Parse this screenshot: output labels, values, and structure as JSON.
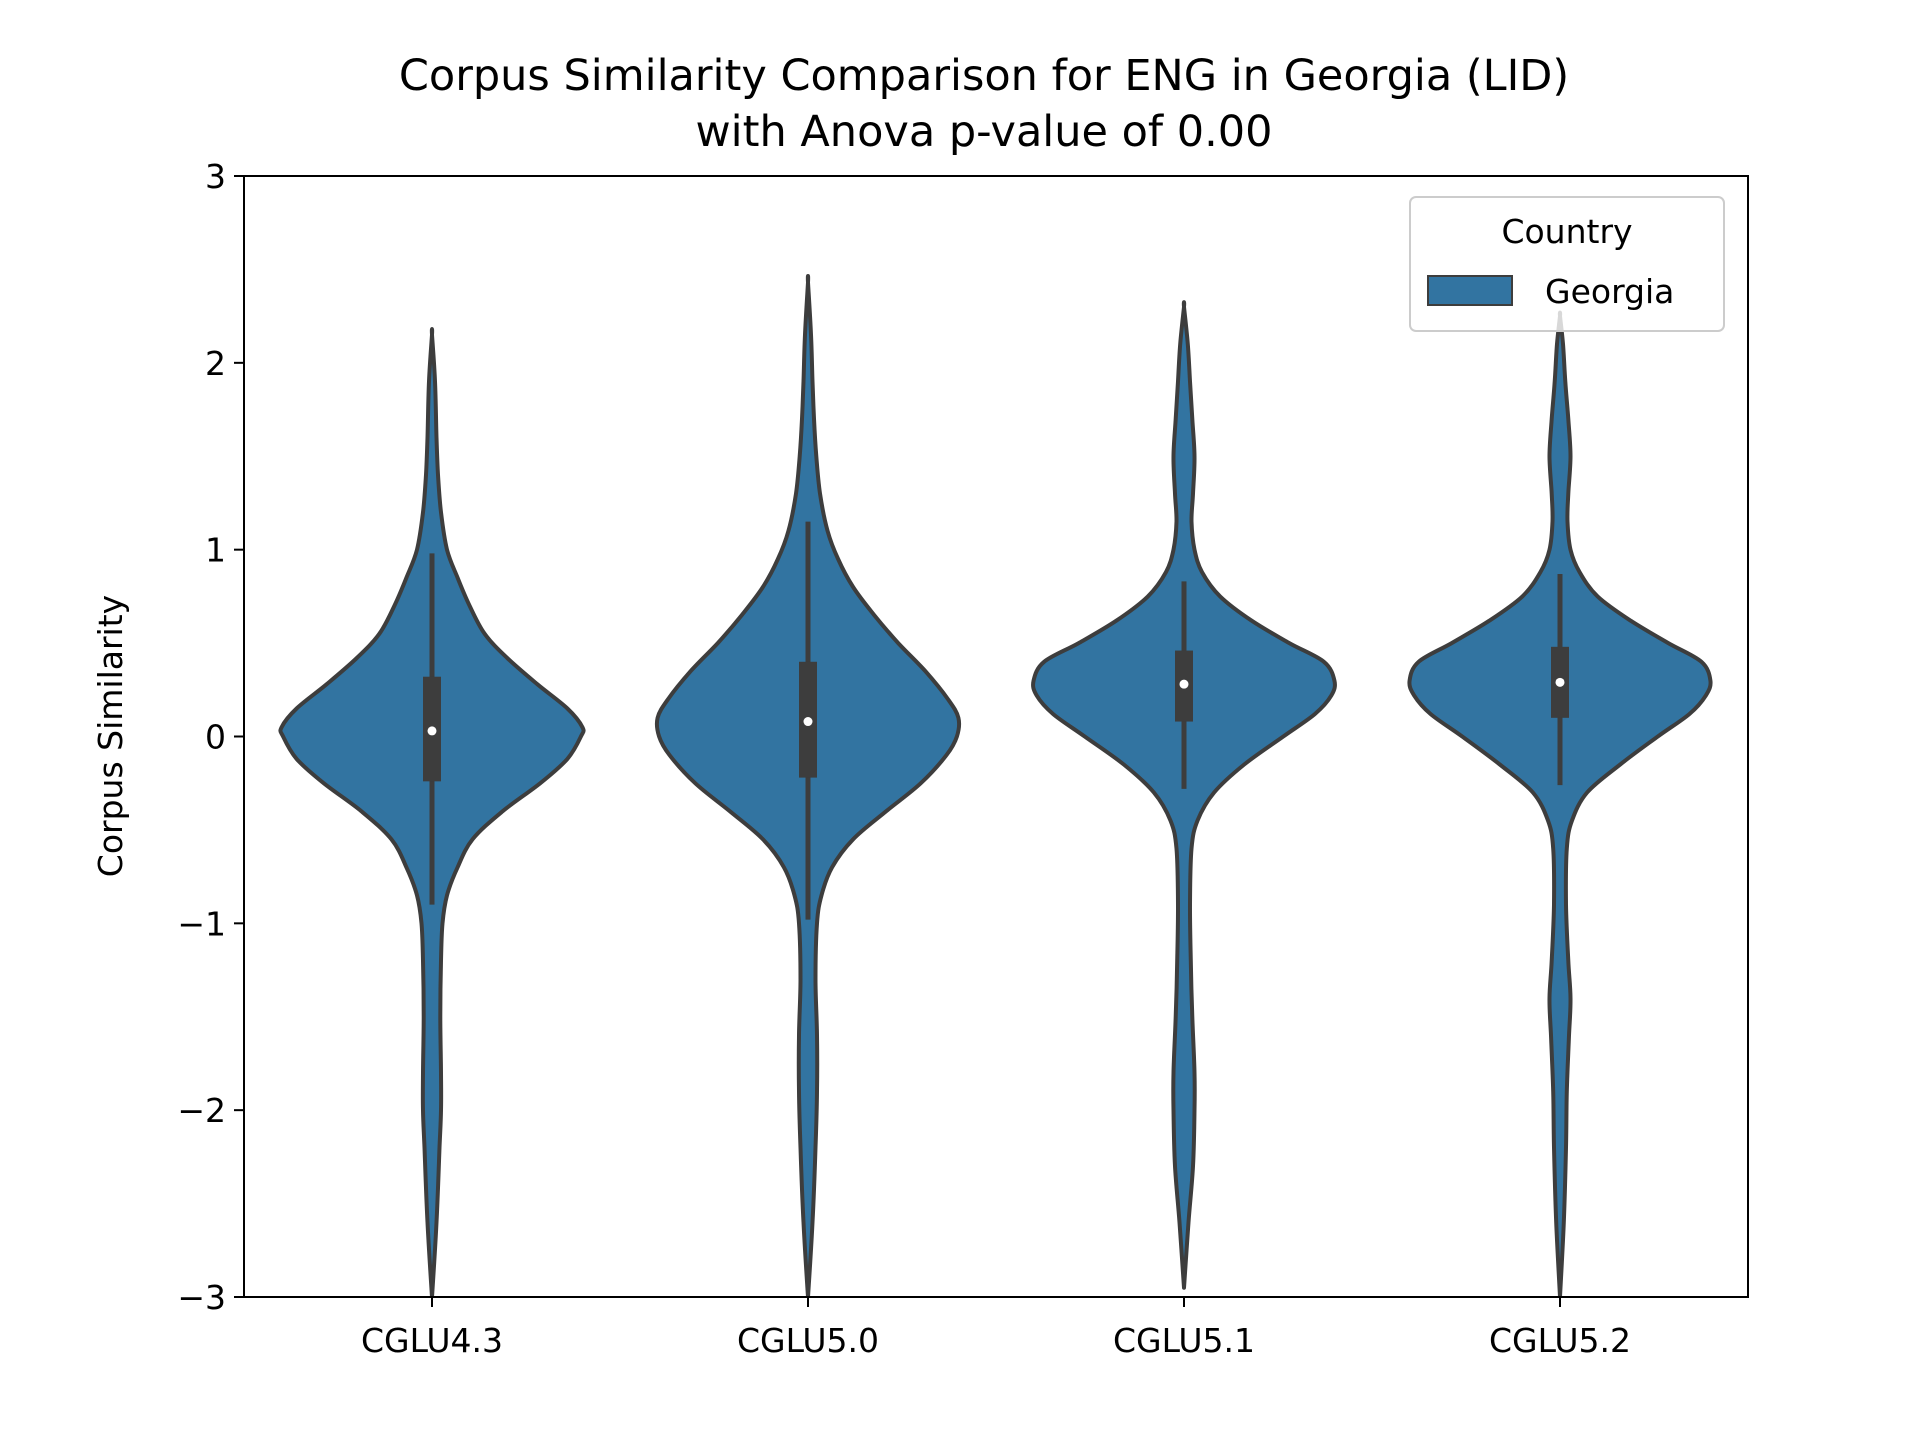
{
  "chart_data": {
    "type": "violin",
    "title": "Corpus Similarity Comparison for ENG in Georgia (LID)",
    "subtitle": "with Anova p-value of 0.00",
    "xlabel": "",
    "ylabel": "Corpus Similarity",
    "ylim": [
      -3,
      3
    ],
    "yticks": [
      -3,
      -2,
      -1,
      0,
      1,
      2,
      3
    ],
    "ytick_labels": [
      "−3",
      "−2",
      "−1",
      "0",
      "1",
      "2",
      "3"
    ],
    "categories": [
      "CGLU4.3",
      "CGLU5.0",
      "CGLU5.1",
      "CGLU5.2"
    ],
    "legend": {
      "title": "Country",
      "entries": [
        "Georgia"
      ],
      "placement": "top-right"
    },
    "colors": {
      "fill": "#3274a1",
      "edge": "#3d3d3d",
      "median": "#ffffff"
    },
    "series": [
      {
        "name": "Georgia",
        "violins": [
          {
            "category": "CGLU4.3",
            "median": 0.03,
            "q1": -0.24,
            "q3": 0.32,
            "whisker_low": -0.9,
            "whisker_high": 0.98,
            "min": -3.0,
            "max": 2.15,
            "density": [
              [
                -3.0,
                0.0
              ],
              [
                -2.6,
                0.03
              ],
              [
                -2.2,
                0.05
              ],
              [
                -2.0,
                0.06
              ],
              [
                -1.8,
                0.06
              ],
              [
                -1.5,
                0.055
              ],
              [
                -1.2,
                0.06
              ],
              [
                -1.0,
                0.07
              ],
              [
                -0.85,
                0.1
              ],
              [
                -0.7,
                0.17
              ],
              [
                -0.55,
                0.27
              ],
              [
                -0.4,
                0.47
              ],
              [
                -0.25,
                0.72
              ],
              [
                -0.12,
                0.9
              ],
              [
                0.0,
                0.99
              ],
              [
                0.05,
                1.0
              ],
              [
                0.15,
                0.9
              ],
              [
                0.28,
                0.7
              ],
              [
                0.42,
                0.5
              ],
              [
                0.55,
                0.35
              ],
              [
                0.7,
                0.25
              ],
              [
                0.85,
                0.17
              ],
              [
                1.0,
                0.1
              ],
              [
                1.2,
                0.06
              ],
              [
                1.4,
                0.04
              ],
              [
                1.6,
                0.03
              ],
              [
                1.9,
                0.02
              ],
              [
                2.15,
                0.0
              ]
            ]
          },
          {
            "category": "CGLU5.0",
            "median": 0.08,
            "q1": -0.22,
            "q3": 0.4,
            "whisker_low": -0.98,
            "whisker_high": 1.15,
            "min": -3.0,
            "max": 2.43,
            "density": [
              [
                -3.0,
                0.0
              ],
              [
                -2.6,
                0.03
              ],
              [
                -2.2,
                0.05
              ],
              [
                -1.9,
                0.06
              ],
              [
                -1.6,
                0.06
              ],
              [
                -1.3,
                0.05
              ],
              [
                -1.0,
                0.06
              ],
              [
                -0.85,
                0.09
              ],
              [
                -0.7,
                0.16
              ],
              [
                -0.55,
                0.3
              ],
              [
                -0.4,
                0.52
              ],
              [
                -0.25,
                0.75
              ],
              [
                -0.1,
                0.92
              ],
              [
                0.0,
                0.99
              ],
              [
                0.1,
                1.0
              ],
              [
                0.2,
                0.93
              ],
              [
                0.35,
                0.78
              ],
              [
                0.5,
                0.6
              ],
              [
                0.65,
                0.44
              ],
              [
                0.8,
                0.3
              ],
              [
                0.95,
                0.2
              ],
              [
                1.1,
                0.13
              ],
              [
                1.3,
                0.08
              ],
              [
                1.5,
                0.055
              ],
              [
                1.7,
                0.04
              ],
              [
                1.9,
                0.03
              ],
              [
                2.15,
                0.02
              ],
              [
                2.43,
                0.0
              ]
            ]
          },
          {
            "category": "CGLU5.1",
            "median": 0.28,
            "q1": 0.08,
            "q3": 0.46,
            "whisker_low": -0.28,
            "whisker_high": 0.83,
            "min": -2.95,
            "max": 2.3,
            "density": [
              [
                -2.95,
                0.0
              ],
              [
                -2.6,
                0.03
              ],
              [
                -2.3,
                0.06
              ],
              [
                -2.0,
                0.07
              ],
              [
                -1.8,
                0.07
              ],
              [
                -1.5,
                0.055
              ],
              [
                -1.2,
                0.045
              ],
              [
                -0.9,
                0.04
              ],
              [
                -0.6,
                0.05
              ],
              [
                -0.45,
                0.09
              ],
              [
                -0.3,
                0.2
              ],
              [
                -0.15,
                0.4
              ],
              [
                0.0,
                0.66
              ],
              [
                0.12,
                0.87
              ],
              [
                0.22,
                0.98
              ],
              [
                0.3,
                1.0
              ],
              [
                0.4,
                0.93
              ],
              [
                0.5,
                0.7
              ],
              [
                0.62,
                0.45
              ],
              [
                0.75,
                0.24
              ],
              [
                0.88,
                0.12
              ],
              [
                1.0,
                0.07
              ],
              [
                1.15,
                0.05
              ],
              [
                1.3,
                0.06
              ],
              [
                1.5,
                0.07
              ],
              [
                1.7,
                0.055
              ],
              [
                1.9,
                0.04
              ],
              [
                2.1,
                0.025
              ],
              [
                2.3,
                0.0
              ]
            ]
          },
          {
            "category": "CGLU5.2",
            "median": 0.29,
            "q1": 0.1,
            "q3": 0.48,
            "whisker_low": -0.26,
            "whisker_high": 0.87,
            "min": -3.0,
            "max": 2.25,
            "density": [
              [
                -3.0,
                0.0
              ],
              [
                -2.6,
                0.025
              ],
              [
                -2.2,
                0.04
              ],
              [
                -1.9,
                0.045
              ],
              [
                -1.6,
                0.06
              ],
              [
                -1.4,
                0.07
              ],
              [
                -1.2,
                0.055
              ],
              [
                -0.9,
                0.04
              ],
              [
                -0.6,
                0.045
              ],
              [
                -0.45,
                0.08
              ],
              [
                -0.3,
                0.18
              ],
              [
                -0.15,
                0.4
              ],
              [
                0.0,
                0.65
              ],
              [
                0.12,
                0.86
              ],
              [
                0.22,
                0.97
              ],
              [
                0.3,
                1.0
              ],
              [
                0.4,
                0.94
              ],
              [
                0.5,
                0.72
              ],
              [
                0.62,
                0.47
              ],
              [
                0.75,
                0.25
              ],
              [
                0.88,
                0.13
              ],
              [
                1.0,
                0.07
              ],
              [
                1.15,
                0.05
              ],
              [
                1.3,
                0.055
              ],
              [
                1.5,
                0.07
              ],
              [
                1.7,
                0.055
              ],
              [
                1.9,
                0.035
              ],
              [
                2.1,
                0.02
              ],
              [
                2.25,
                0.0
              ]
            ]
          }
        ]
      }
    ]
  }
}
